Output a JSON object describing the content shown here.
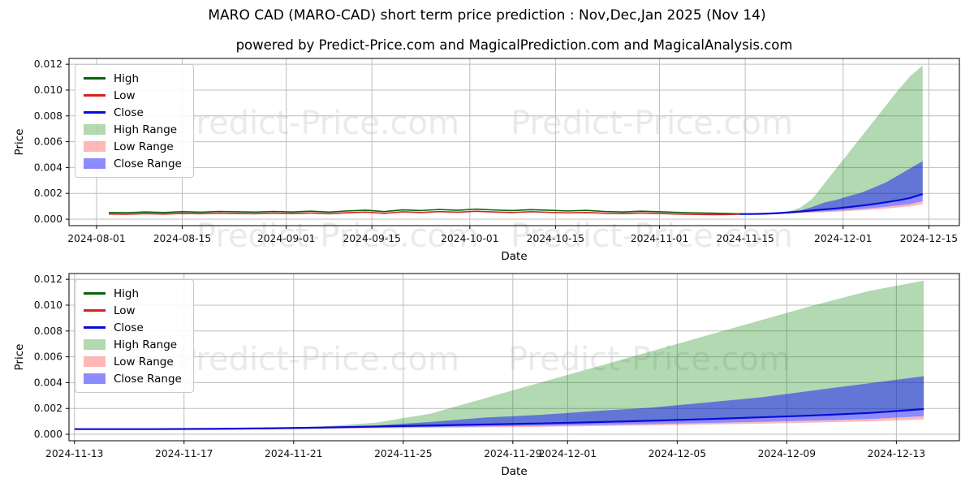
{
  "header": {
    "title": "MARO CAD (MARO-CAD) short term price prediction : Nov,Dec,Jan 2025 (Nov 14)",
    "subtitle": "powered by Predict-Price.com and MagicalPrediction.com and MagicalAnalysis.com"
  },
  "watermark": {
    "text": "Predict-Price.com"
  },
  "colors": {
    "high_line": "#0a650a",
    "low_line": "#d62020",
    "close_line": "#0b0bd6",
    "high_range_fill": "rgba(0,128,0,0.30)",
    "low_range_fill": "rgba(255,0,0,0.28)",
    "close_range_fill": "rgba(0,0,255,0.45)",
    "grid": "#bdbdbd",
    "spine": "#000000"
  },
  "chart_data": [
    {
      "type": "line",
      "name": "price-history-and-forecast",
      "xlabel": "Date",
      "ylabel": "Price",
      "xlim": [
        -4.5,
        141
      ],
      "ylim": [
        -0.0005,
        0.01245
      ],
      "grid": true,
      "legend_position": "upper-left",
      "xticks": [
        {
          "label": "2024-08-01",
          "day": 0
        },
        {
          "label": "2024-08-15",
          "day": 14
        },
        {
          "label": "2024-09-01",
          "day": 31
        },
        {
          "label": "2024-09-15",
          "day": 45
        },
        {
          "label": "2024-10-01",
          "day": 61
        },
        {
          "label": "2024-10-15",
          "day": 75
        },
        {
          "label": "2024-11-01",
          "day": 92
        },
        {
          "label": "2024-11-15",
          "day": 106
        },
        {
          "label": "2024-12-01",
          "day": 122
        },
        {
          "label": "2024-12-15",
          "day": 136
        }
      ],
      "yticks": [
        {
          "label": "0.000",
          "value": 0.0
        },
        {
          "label": "0.002",
          "value": 0.002
        },
        {
          "label": "0.004",
          "value": 0.004
        },
        {
          "label": "0.006",
          "value": 0.006
        },
        {
          "label": "0.008",
          "value": 0.008
        },
        {
          "label": "0.010",
          "value": 0.01
        },
        {
          "label": "0.012",
          "value": 0.012
        }
      ],
      "legend": [
        {
          "label": "High",
          "kind": "line",
          "color": "#0a650a"
        },
        {
          "label": "Low",
          "kind": "line",
          "color": "#d62020"
        },
        {
          "label": "Close",
          "kind": "line",
          "color": "#0b0bd6"
        },
        {
          "label": "High Range",
          "kind": "patch",
          "color": "rgba(0,128,0,0.30)"
        },
        {
          "label": "Low Range",
          "kind": "patch",
          "color": "rgba(255,0,0,0.28)"
        },
        {
          "label": "Close Range",
          "kind": "patch",
          "color": "rgba(0,0,255,0.45)"
        }
      ],
      "bands": [
        {
          "name": "high-range",
          "fill": "rgba(0,128,0,0.30)",
          "days": [
            105,
            107,
            109,
            111,
            113,
            115,
            117,
            119,
            121,
            123,
            125,
            127,
            129,
            131,
            133,
            135
          ],
          "upper": [
            0.0004,
            0.00042,
            0.00045,
            0.0005,
            0.0006,
            0.0009,
            0.0016,
            0.0028,
            0.004,
            0.0052,
            0.0064,
            0.0076,
            0.0088,
            0.01,
            0.0111,
            0.0119
          ],
          "lower": [
            0.0004,
            0.0004,
            0.00042,
            0.00046,
            0.00052,
            0.0006,
            0.00068,
            0.00076,
            0.00084,
            0.00094,
            0.00105,
            0.00117,
            0.00131,
            0.00146,
            0.00165,
            0.00195
          ]
        },
        {
          "name": "low-range",
          "fill": "rgba(255,0,0,0.28)",
          "days": [
            105,
            107,
            109,
            111,
            113,
            115,
            117,
            119,
            121,
            123,
            125,
            127,
            129,
            131,
            133,
            135
          ],
          "upper": [
            0.0004,
            0.00039,
            0.0004,
            0.00042,
            0.00046,
            0.00051,
            0.00056,
            0.00061,
            0.00066,
            0.00072,
            0.00079,
            0.00087,
            0.00096,
            0.00106,
            0.00118,
            0.0014
          ],
          "lower": [
            0.00038,
            0.00037,
            0.00038,
            0.00039,
            0.00042,
            0.00046,
            0.0005,
            0.00054,
            0.00058,
            0.00063,
            0.00069,
            0.00075,
            0.00082,
            0.00091,
            0.001,
            0.00115
          ]
        },
        {
          "name": "close-range",
          "fill": "rgba(0,0,255,0.45)",
          "days": [
            105,
            107,
            109,
            111,
            113,
            115,
            117,
            119,
            121,
            123,
            125,
            127,
            129,
            131,
            133,
            135
          ],
          "upper": [
            0.0004,
            0.00041,
            0.00043,
            0.00048,
            0.00056,
            0.00068,
            0.00095,
            0.0013,
            0.0015,
            0.0018,
            0.00205,
            0.00245,
            0.00285,
            0.0034,
            0.00395,
            0.0045
          ],
          "lower": [
            0.0004,
            0.00039,
            0.0004,
            0.00042,
            0.00046,
            0.00051,
            0.00056,
            0.00061,
            0.00066,
            0.00072,
            0.00079,
            0.00087,
            0.00096,
            0.00106,
            0.00118,
            0.0014
          ]
        }
      ],
      "lines": [
        {
          "name": "high",
          "color": "#0a650a",
          "width": 1.6,
          "days": [
            2,
            5,
            8,
            11,
            14,
            17,
            20,
            23,
            26,
            29,
            32,
            35,
            38,
            41,
            44,
            47,
            50,
            53,
            56,
            59,
            62,
            65,
            68,
            71,
            74,
            77,
            80,
            83,
            86,
            89,
            92,
            95,
            98,
            101,
            103,
            105
          ],
          "values": [
            0.00052,
            0.0005,
            0.00056,
            0.00052,
            0.00058,
            0.00054,
            0.0006,
            0.00057,
            0.00055,
            0.0006,
            0.00056,
            0.00062,
            0.00055,
            0.00064,
            0.0007,
            0.00059,
            0.00072,
            0.00067,
            0.00075,
            0.00069,
            0.00078,
            0.00071,
            0.00067,
            0.00074,
            0.00069,
            0.00064,
            0.00068,
            0.0006,
            0.00056,
            0.00062,
            0.00057,
            0.00053,
            0.00049,
            0.00046,
            0.00044,
            0.00042
          ]
        },
        {
          "name": "low",
          "color": "#d62020",
          "width": 1.6,
          "days": [
            2,
            5,
            8,
            11,
            14,
            17,
            20,
            23,
            26,
            29,
            32,
            35,
            38,
            41,
            44,
            47,
            50,
            53,
            56,
            59,
            62,
            65,
            68,
            71,
            74,
            77,
            80,
            83,
            86,
            89,
            92,
            95,
            98,
            101,
            103,
            105
          ],
          "values": [
            0.0004,
            0.00038,
            0.00043,
            0.0004,
            0.00045,
            0.00042,
            0.00047,
            0.00044,
            0.00042,
            0.00047,
            0.00043,
            0.00048,
            0.00042,
            0.0005,
            0.00055,
            0.00045,
            0.00057,
            0.00052,
            0.00059,
            0.00054,
            0.00061,
            0.00056,
            0.00052,
            0.00058,
            0.00053,
            0.00049,
            0.00052,
            0.00046,
            0.00043,
            0.00048,
            0.00044,
            0.0004,
            0.00037,
            0.00035,
            0.00036,
            0.00038
          ]
        },
        {
          "name": "close",
          "color": "#0b0bd6",
          "width": 2.2,
          "days": [
            105,
            107,
            109,
            111,
            113,
            115,
            117,
            119,
            121,
            123,
            125,
            127,
            129,
            131,
            133,
            135
          ],
          "values": [
            0.0004,
            0.0004,
            0.00042,
            0.00046,
            0.00052,
            0.0006,
            0.00068,
            0.00076,
            0.00084,
            0.00094,
            0.00105,
            0.00117,
            0.00131,
            0.00146,
            0.00165,
            0.00195
          ]
        }
      ]
    },
    {
      "type": "line",
      "name": "forecast-zoom",
      "xlabel": "Date",
      "ylabel": "Price",
      "xlim": [
        -0.2,
        32.3
      ],
      "ylim": [
        -0.0005,
        0.01245
      ],
      "grid": true,
      "legend_position": "upper-left",
      "xticks": [
        {
          "label": "2024-11-13",
          "day": 0
        },
        {
          "label": "2024-11-17",
          "day": 4
        },
        {
          "label": "2024-11-21",
          "day": 8
        },
        {
          "label": "2024-11-25",
          "day": 12
        },
        {
          "label": "2024-11-29",
          "day": 16
        },
        {
          "label": "2024-12-01",
          "day": 18
        },
        {
          "label": "2024-12-05",
          "day": 22
        },
        {
          "label": "2024-12-09",
          "day": 26
        },
        {
          "label": "2024-12-13",
          "day": 30
        }
      ],
      "yticks": [
        {
          "label": "0.000",
          "value": 0.0
        },
        {
          "label": "0.002",
          "value": 0.002
        },
        {
          "label": "0.004",
          "value": 0.004
        },
        {
          "label": "0.006",
          "value": 0.006
        },
        {
          "label": "0.008",
          "value": 0.008
        },
        {
          "label": "0.010",
          "value": 0.01
        },
        {
          "label": "0.012",
          "value": 0.012
        }
      ],
      "legend": [
        {
          "label": "High",
          "kind": "line",
          "color": "#0a650a"
        },
        {
          "label": "Low",
          "kind": "line",
          "color": "#d62020"
        },
        {
          "label": "Close",
          "kind": "line",
          "color": "#0b0bd6"
        },
        {
          "label": "High Range",
          "kind": "patch",
          "color": "rgba(0,128,0,0.30)"
        },
        {
          "label": "Low Range",
          "kind": "patch",
          "color": "rgba(255,0,0,0.28)"
        },
        {
          "label": "Close Range",
          "kind": "patch",
          "color": "rgba(0,0,255,0.45)"
        }
      ],
      "bands": [
        {
          "name": "high-range",
          "fill": "rgba(0,128,0,0.30)",
          "days": [
            1,
            3,
            5,
            7,
            9,
            11,
            13,
            15,
            17,
            19,
            21,
            23,
            25,
            27,
            29,
            31
          ],
          "upper": [
            0.0004,
            0.00042,
            0.00045,
            0.0005,
            0.0006,
            0.0009,
            0.0016,
            0.0028,
            0.004,
            0.0052,
            0.0064,
            0.0076,
            0.0088,
            0.01,
            0.0111,
            0.0119
          ],
          "lower": [
            0.0004,
            0.0004,
            0.00042,
            0.00046,
            0.00052,
            0.0006,
            0.00068,
            0.00076,
            0.00084,
            0.00094,
            0.00105,
            0.00117,
            0.00131,
            0.00146,
            0.00165,
            0.00195
          ]
        },
        {
          "name": "low-range",
          "fill": "rgba(255,0,0,0.28)",
          "days": [
            1,
            3,
            5,
            7,
            9,
            11,
            13,
            15,
            17,
            19,
            21,
            23,
            25,
            27,
            29,
            31
          ],
          "upper": [
            0.0004,
            0.00039,
            0.0004,
            0.00042,
            0.00046,
            0.00051,
            0.00056,
            0.00061,
            0.00066,
            0.00072,
            0.00079,
            0.00087,
            0.00096,
            0.00106,
            0.00118,
            0.0014
          ],
          "lower": [
            0.00038,
            0.00037,
            0.00038,
            0.00039,
            0.00042,
            0.00046,
            0.0005,
            0.00054,
            0.00058,
            0.00063,
            0.00069,
            0.00075,
            0.00082,
            0.00091,
            0.001,
            0.00115
          ]
        },
        {
          "name": "close-range",
          "fill": "rgba(0,0,255,0.45)",
          "days": [
            1,
            3,
            5,
            7,
            9,
            11,
            13,
            15,
            17,
            19,
            21,
            23,
            25,
            27,
            29,
            31
          ],
          "upper": [
            0.0004,
            0.00041,
            0.00043,
            0.00048,
            0.00056,
            0.00068,
            0.00095,
            0.0013,
            0.0015,
            0.0018,
            0.00205,
            0.00245,
            0.00285,
            0.0034,
            0.00395,
            0.0045
          ],
          "lower": [
            0.0004,
            0.00039,
            0.0004,
            0.00042,
            0.00046,
            0.00051,
            0.00056,
            0.00061,
            0.00066,
            0.00072,
            0.00079,
            0.00087,
            0.00096,
            0.00106,
            0.00118,
            0.0014
          ]
        }
      ],
      "lines": [
        {
          "name": "close",
          "color": "#0b0bd6",
          "width": 2.2,
          "days": [
            0,
            1,
            3,
            5,
            7,
            9,
            11,
            13,
            15,
            17,
            19,
            21,
            23,
            25,
            27,
            29,
            31
          ],
          "values": [
            0.0004,
            0.0004,
            0.0004,
            0.00042,
            0.00046,
            0.00052,
            0.0006,
            0.00068,
            0.00076,
            0.00084,
            0.00094,
            0.00105,
            0.00117,
            0.00131,
            0.00146,
            0.00165,
            0.00195
          ]
        }
      ]
    }
  ]
}
